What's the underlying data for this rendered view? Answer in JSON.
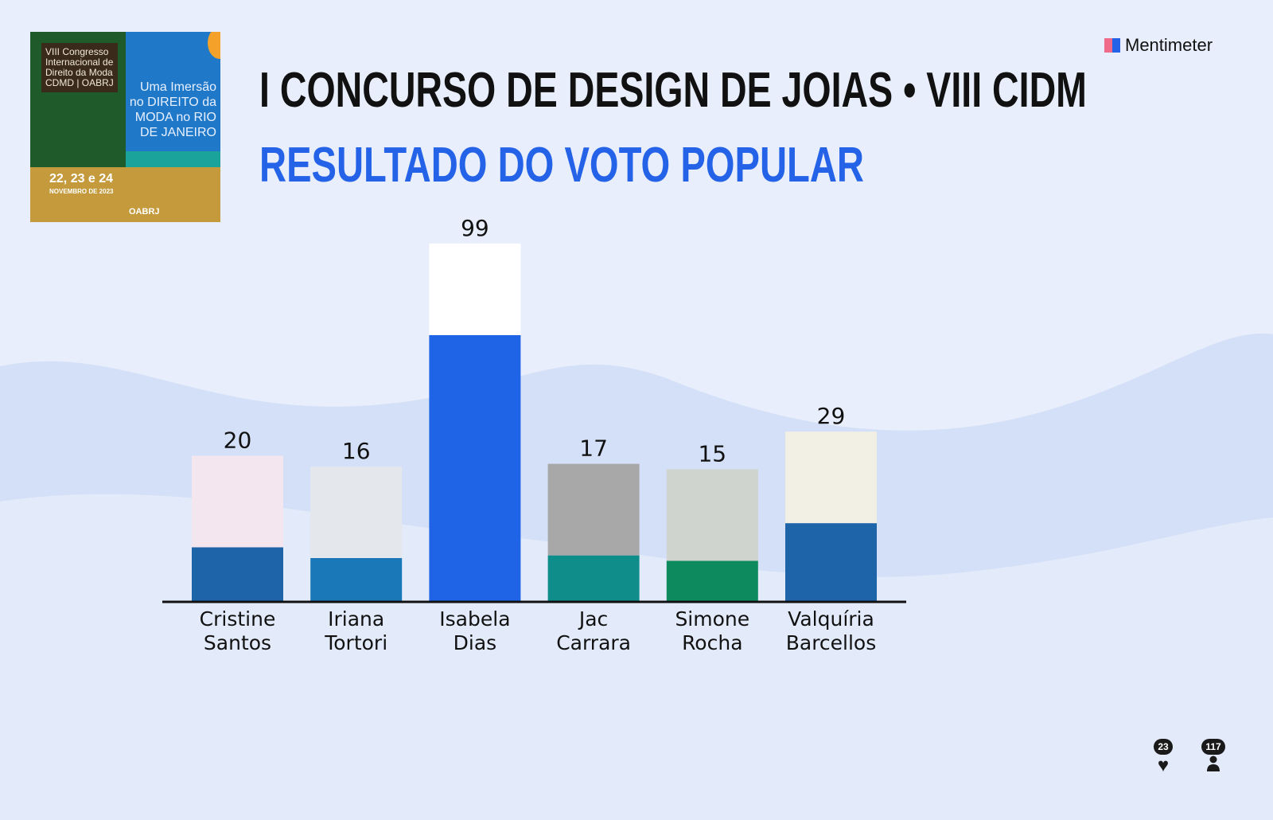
{
  "poster": {
    "box": "VIII Congresso Internacional de Direito da Moda CDMD | OABRJ",
    "tagline": "Uma Imersão no DIREITO da MODA no RIO DE JANEIRO",
    "dates": "22, 23 e 24",
    "month": "NOVEMBRO DE 2023",
    "org": "OABRJ"
  },
  "header": {
    "title": "I CONCURSO DE DESIGN DE JOIAS • VIII CIDM",
    "subtitle": "RESULTADO DO VOTO POPULAR",
    "brand": "Mentimeter"
  },
  "footer": {
    "reactions": "23",
    "participants": "117"
  },
  "chart_data": {
    "type": "bar",
    "title": "RESULTADO DO VOTO POPULAR",
    "categories": [
      "Cristine Santos",
      "Iriana Tortori",
      "Isabela Dias",
      "Jac Carrara",
      "Simone Rocha",
      "Valquíria Barcellos"
    ],
    "values": [
      20,
      16,
      99,
      17,
      15,
      29
    ],
    "colors": [
      "#1e64a8",
      "#1b78b8",
      "#1f64e6",
      "#0f8d8a",
      "#0d8a5e",
      "#1e64a8"
    ],
    "image_colors": [
      "#f4e6ee",
      "#e4e8ec",
      "#ffffff",
      "#a8a8a8",
      "#cfd4cf",
      "#f2efe4"
    ],
    "xlabel": "",
    "ylabel": ""
  }
}
